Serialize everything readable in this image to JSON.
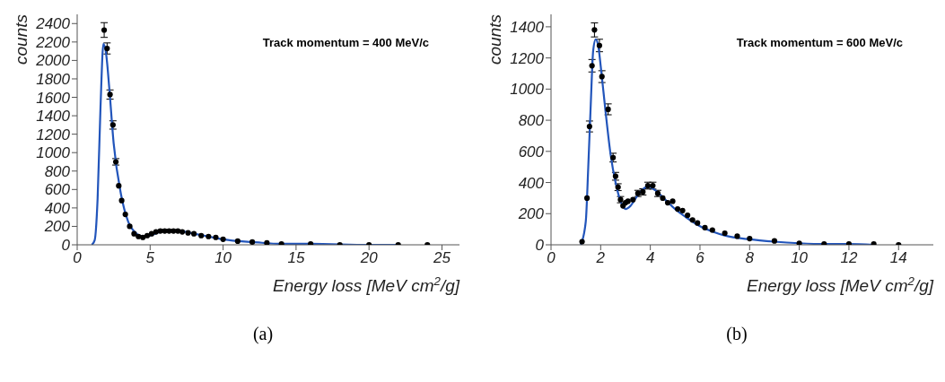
{
  "chart_data": [
    {
      "type": "line",
      "xlabel": "Energy loss [MeV cm$^{2}$/g]",
      "ylabel": "counts",
      "annotations": [
        "Track momentum = 400 MeV/c",
        "(a)"
      ],
      "xlim": [
        0,
        26.2
      ],
      "ylim": [
        0,
        2500
      ],
      "xticks": [
        0,
        5,
        10,
        15,
        20,
        25
      ],
      "yticks": [
        0,
        200,
        400,
        600,
        800,
        1000,
        1200,
        1400,
        1600,
        1800,
        2000,
        2200,
        2400
      ],
      "grid": false,
      "series": [
        {
          "type": "scatter",
          "color": "#000000",
          "marker": "circle",
          "x": [
            1.85,
            2.05,
            2.25,
            2.45,
            2.65,
            2.85,
            3.05,
            3.3,
            3.6,
            3.9,
            4.2,
            4.5,
            4.8,
            5.1,
            5.4,
            5.7,
            6.0,
            6.3,
            6.6,
            6.9,
            7.2,
            7.6,
            8.0,
            8.5,
            9.0,
            9.5,
            10.0,
            11.0,
            12.0,
            13.0,
            14.0,
            16.0,
            18.0,
            20.0,
            22.0,
            24.0
          ],
          "values": [
            2330,
            2130,
            1630,
            1300,
            900,
            640,
            480,
            330,
            200,
            120,
            90,
            80,
            100,
            120,
            140,
            150,
            150,
            150,
            150,
            150,
            140,
            130,
            120,
            100,
            90,
            80,
            60,
            40,
            30,
            20,
            10,
            10,
            0,
            0,
            0,
            0
          ],
          "errors": [
            80,
            60,
            50,
            45,
            35,
            null,
            null,
            null,
            null,
            null,
            null,
            null,
            null,
            null,
            null,
            null,
            null,
            null,
            null,
            null,
            null,
            null,
            null,
            null,
            null,
            null,
            null,
            null,
            null,
            null,
            null,
            null,
            null,
            null,
            null,
            null
          ]
        },
        {
          "color": "#2255bb",
          "marker": "none",
          "x": [
            1.0,
            1.2,
            1.4,
            1.6,
            1.8,
            2.0,
            2.2,
            2.5,
            3.0,
            3.5,
            4.0,
            4.5,
            5.0,
            5.5,
            6.0,
            6.5,
            7.0,
            8.0,
            9.0,
            10.0,
            11.0,
            12.0,
            14.0,
            16.0,
            20.0,
            22.0
          ],
          "values": [
            0,
            50,
            500,
            1500,
            2180,
            2050,
            1700,
            1100,
            550,
            250,
            130,
            90,
            100,
            130,
            150,
            150,
            150,
            120,
            90,
            60,
            40,
            30,
            10,
            10,
            0,
            0
          ]
        }
      ]
    },
    {
      "type": "line",
      "xlabel": "Energy loss [MeV cm$^{2}$/g]",
      "ylabel": "counts",
      "annotations": [
        "Track momentum = 600 MeV/c",
        "(b)"
      ],
      "xlim": [
        0,
        15.4
      ],
      "ylim": [
        0,
        1480
      ],
      "xticks": [
        0,
        2,
        4,
        6,
        8,
        10,
        12,
        14
      ],
      "yticks": [
        0,
        200,
        400,
        600,
        800,
        1000,
        1200,
        1400
      ],
      "grid": false,
      "series": [
        {
          "type": "scatter",
          "color": "#000000",
          "marker": "circle",
          "x": [
            1.25,
            1.45,
            1.55,
            1.65,
            1.75,
            1.95,
            2.05,
            2.3,
            2.5,
            2.6,
            2.7,
            2.8,
            2.9,
            3.0,
            3.1,
            3.3,
            3.5,
            3.7,
            3.9,
            4.1,
            4.3,
            4.5,
            4.7,
            4.9,
            5.1,
            5.3,
            5.5,
            5.7,
            5.9,
            6.2,
            6.5,
            7.0,
            7.5,
            8.0,
            9.0,
            10.0,
            11.0,
            12.0,
            13.0,
            14.0
          ],
          "values": [
            20,
            300,
            760,
            1150,
            1380,
            1280,
            1080,
            870,
            560,
            440,
            370,
            290,
            250,
            270,
            280,
            290,
            330,
            340,
            380,
            380,
            330,
            300,
            270,
            280,
            230,
            220,
            190,
            160,
            140,
            110,
            95,
            75,
            55,
            40,
            25,
            10,
            5,
            5,
            5,
            0
          ],
          "errors": [
            null,
            null,
            35,
            40,
            45,
            40,
            38,
            35,
            28,
            25,
            22,
            20,
            null,
            null,
            null,
            null,
            20,
            20,
            22,
            22,
            20,
            null,
            null,
            null,
            null,
            null,
            null,
            null,
            null,
            null,
            null,
            null,
            null,
            null,
            null,
            null,
            null,
            null,
            null,
            null
          ]
        },
        {
          "color": "#2255bb",
          "marker": "none",
          "x": [
            1.2,
            1.4,
            1.5,
            1.6,
            1.7,
            1.8,
            1.9,
            2.0,
            2.2,
            2.4,
            2.6,
            2.8,
            3.0,
            3.2,
            3.5,
            3.9,
            4.2,
            4.6,
            5.0,
            5.5,
            6.0,
            6.5,
            7.0,
            8.0,
            9.0,
            10.0,
            11.0,
            12.0,
            13.0
          ],
          "values": [
            0,
            150,
            500,
            900,
            1250,
            1320,
            1280,
            1150,
            850,
            580,
            400,
            280,
            230,
            250,
            320,
            375,
            350,
            290,
            230,
            170,
            120,
            85,
            60,
            35,
            20,
            10,
            5,
            5,
            0
          ]
        }
      ]
    }
  ]
}
